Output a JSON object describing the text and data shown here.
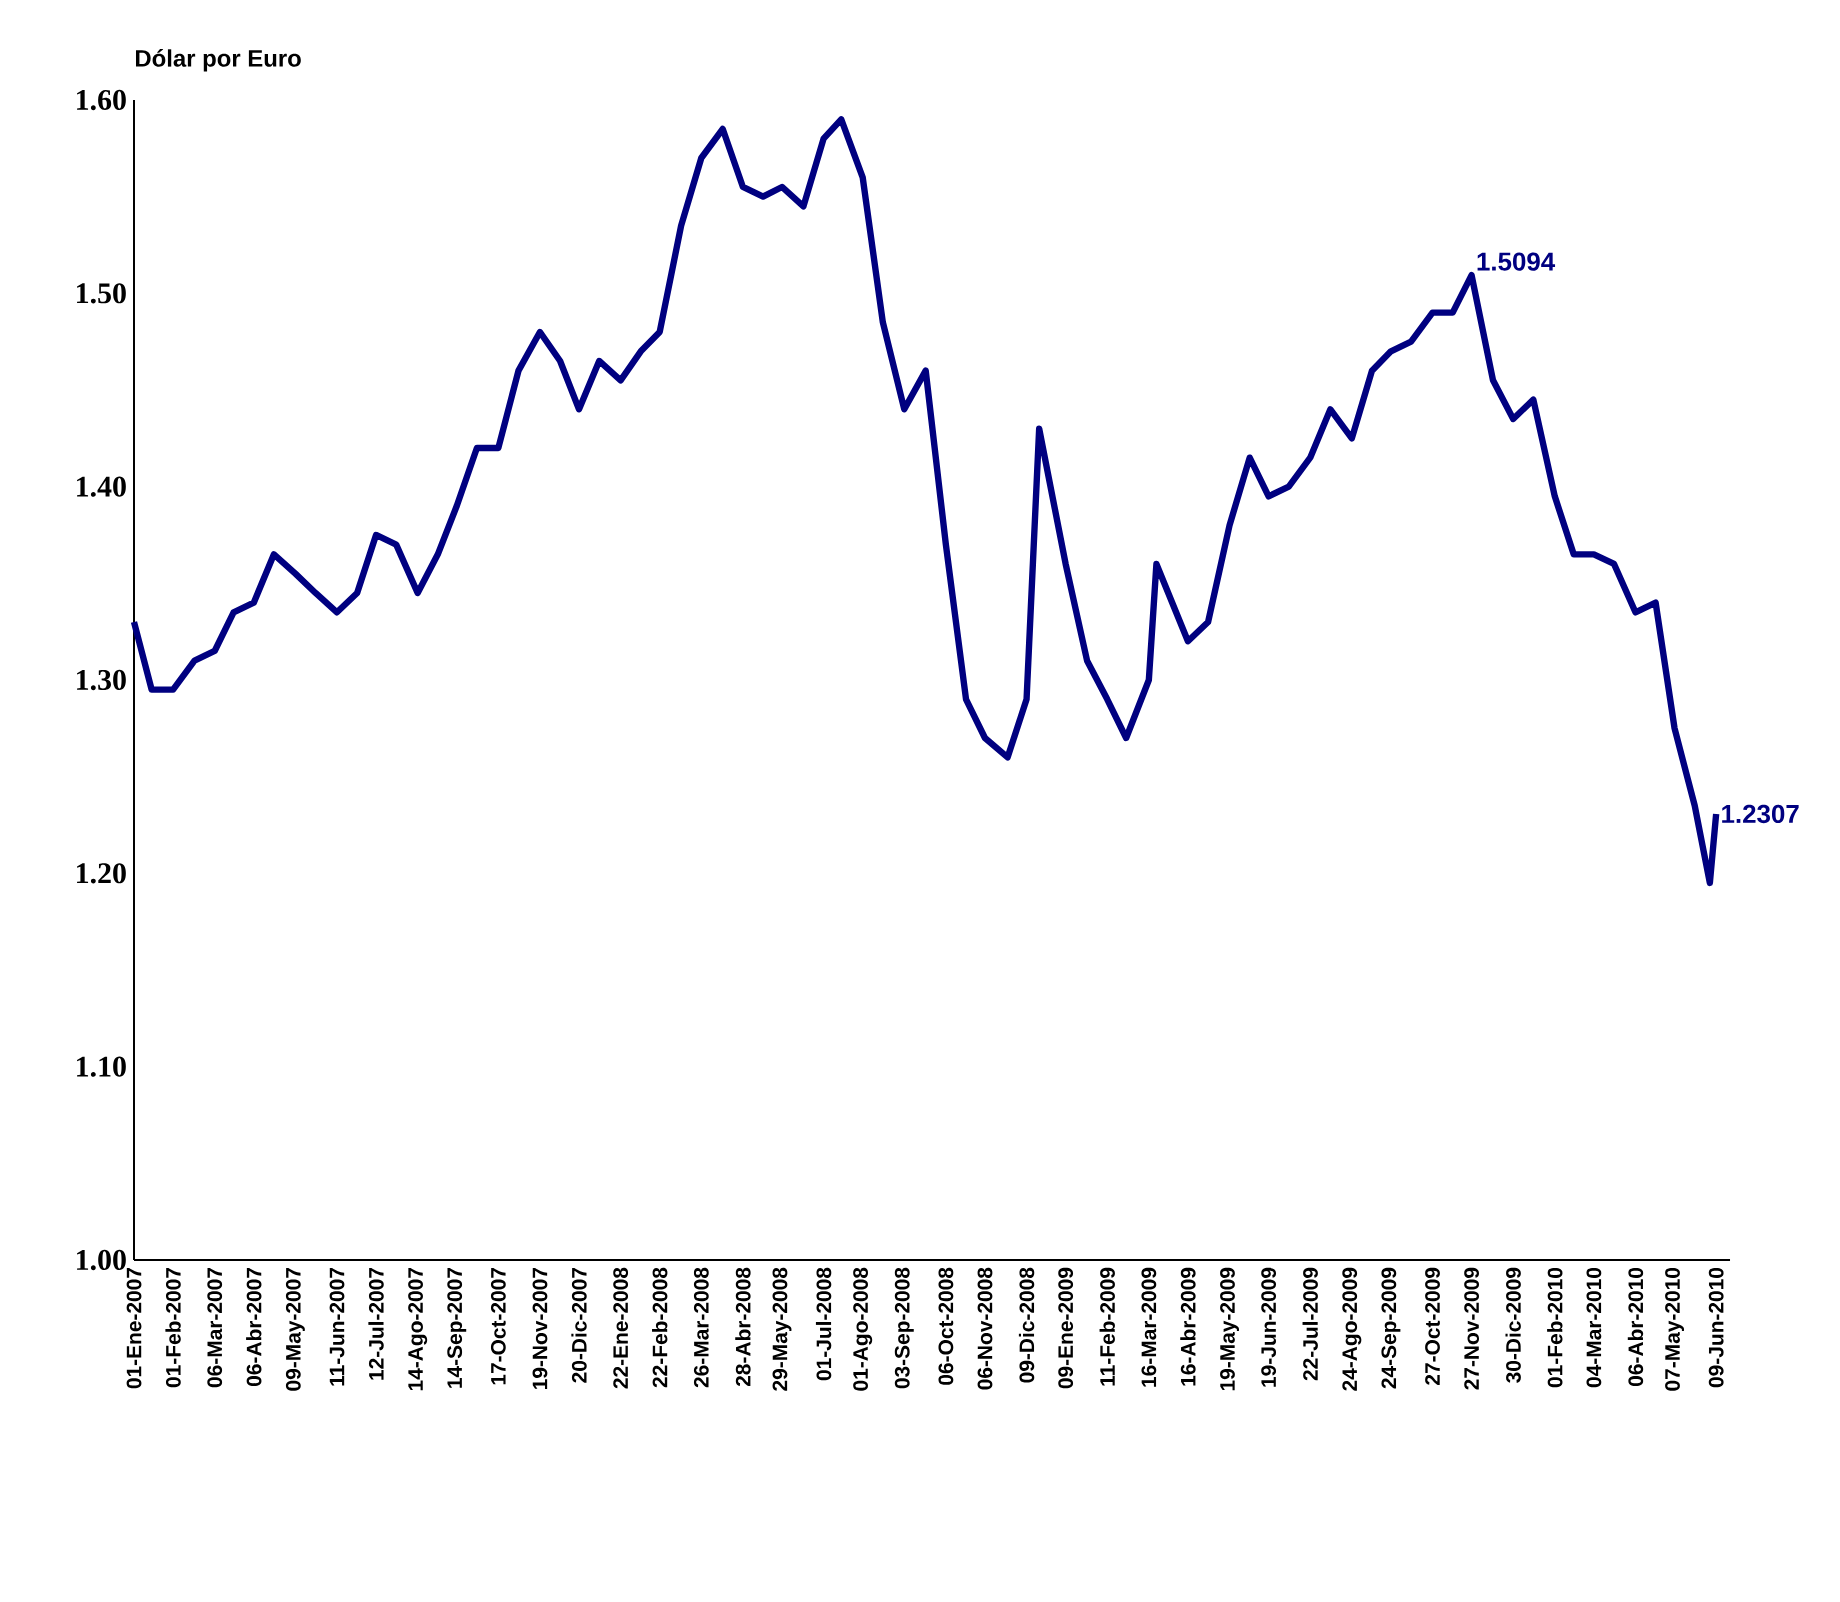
{
  "chart_data": {
    "type": "line",
    "ylabel": "Dólar por Euro",
    "xlim": [
      "2007-01-01",
      "2010-06-20"
    ],
    "ylim": [
      1.0,
      1.6
    ],
    "yticks": [
      {
        "value": 1.0,
        "label": "1.00"
      },
      {
        "value": 1.1,
        "label": "1.10"
      },
      {
        "value": 1.2,
        "label": "1.20"
      },
      {
        "value": 1.3,
        "label": "1.30"
      },
      {
        "value": 1.4,
        "label": "1.40"
      },
      {
        "value": 1.5,
        "label": "1.50"
      },
      {
        "value": 1.6,
        "label": "1.60"
      }
    ],
    "xticks": [
      {
        "value": "2007-01-01",
        "label": "01-Ene-2007"
      },
      {
        "value": "2007-02-01",
        "label": "01-Feb-2007"
      },
      {
        "value": "2007-03-06",
        "label": "06-Mar-2007"
      },
      {
        "value": "2007-04-06",
        "label": "06-Abr-2007"
      },
      {
        "value": "2007-05-09",
        "label": "09-May-2007"
      },
      {
        "value": "2007-06-11",
        "label": "11-Jun-2007"
      },
      {
        "value": "2007-07-12",
        "label": "12-Jul-2007"
      },
      {
        "value": "2007-08-14",
        "label": "14-Ago-2007"
      },
      {
        "value": "2007-09-14",
        "label": "14-Sep-2007"
      },
      {
        "value": "2007-10-17",
        "label": "17-Oct-2007"
      },
      {
        "value": "2007-11-19",
        "label": "19-Nov-2007"
      },
      {
        "value": "2007-12-20",
        "label": "20-Dic-2007"
      },
      {
        "value": "2008-01-22",
        "label": "22-Ene-2008"
      },
      {
        "value": "2008-02-22",
        "label": "22-Feb-2008"
      },
      {
        "value": "2008-03-26",
        "label": "26-Mar-2008"
      },
      {
        "value": "2008-04-28",
        "label": "28-Abr-2008"
      },
      {
        "value": "2008-05-29",
        "label": "29-May-2008"
      },
      {
        "value": "2008-07-01",
        "label": "01-Jul-2008"
      },
      {
        "value": "2008-08-01",
        "label": "01-Ago-2008"
      },
      {
        "value": "2008-09-03",
        "label": "03-Sep-2008"
      },
      {
        "value": "2008-10-06",
        "label": "06-Oct-2008"
      },
      {
        "value": "2008-11-06",
        "label": "06-Nov-2008"
      },
      {
        "value": "2008-12-09",
        "label": "09-Dic-2008"
      },
      {
        "value": "2009-01-09",
        "label": "09-Ene-2009"
      },
      {
        "value": "2009-02-11",
        "label": "11-Feb-2009"
      },
      {
        "value": "2009-03-16",
        "label": "16-Mar-2009"
      },
      {
        "value": "2009-04-16",
        "label": "16-Abr-2009"
      },
      {
        "value": "2009-05-19",
        "label": "19-May-2009"
      },
      {
        "value": "2009-06-19",
        "label": "19-Jun-2009"
      },
      {
        "value": "2009-07-22",
        "label": "22-Jul-2009"
      },
      {
        "value": "2009-08-24",
        "label": "24-Ago-2009"
      },
      {
        "value": "2009-09-24",
        "label": "24-Sep-2009"
      },
      {
        "value": "2009-10-27",
        "label": "27-Oct-2009"
      },
      {
        "value": "2009-11-27",
        "label": "27-Nov-2009"
      },
      {
        "value": "2009-12-30",
        "label": "30-Dic-2009"
      },
      {
        "value": "2010-02-01",
        "label": "01-Feb-2010"
      },
      {
        "value": "2010-03-04",
        "label": "04-Mar-2010"
      },
      {
        "value": "2010-04-06",
        "label": "06-Abr-2010"
      },
      {
        "value": "2010-05-07",
        "label": "07-May-2010"
      },
      {
        "value": "2010-06-09",
        "label": "09-Jun-2010"
      }
    ],
    "x": [
      "2007-01-01",
      "2007-01-15",
      "2007-02-01",
      "2007-02-18",
      "2007-03-06",
      "2007-03-21",
      "2007-04-06",
      "2007-04-22",
      "2007-05-09",
      "2007-05-25",
      "2007-06-11",
      "2007-06-27",
      "2007-07-12",
      "2007-07-28",
      "2007-08-14",
      "2007-08-30",
      "2007-09-14",
      "2007-09-30",
      "2007-10-17",
      "2007-11-02",
      "2007-11-19",
      "2007-12-05",
      "2007-12-20",
      "2008-01-05",
      "2008-01-22",
      "2008-02-07",
      "2008-02-22",
      "2008-03-10",
      "2008-03-26",
      "2008-04-12",
      "2008-04-28",
      "2008-05-14",
      "2008-05-29",
      "2008-06-15",
      "2008-07-01",
      "2008-07-15",
      "2008-08-01",
      "2008-08-17",
      "2008-09-03",
      "2008-09-20",
      "2008-10-06",
      "2008-10-22",
      "2008-11-06",
      "2008-11-24",
      "2008-12-09",
      "2008-12-19",
      "2009-01-09",
      "2009-01-26",
      "2009-02-11",
      "2009-02-26",
      "2009-03-16",
      "2009-03-22",
      "2009-04-16",
      "2009-05-02",
      "2009-05-19",
      "2009-06-04",
      "2009-06-19",
      "2009-07-05",
      "2009-07-22",
      "2009-08-07",
      "2009-08-24",
      "2009-09-09",
      "2009-09-24",
      "2009-10-10",
      "2009-10-27",
      "2009-11-12",
      "2009-11-27",
      "2009-12-14",
      "2009-12-30",
      "2010-01-15",
      "2010-02-01",
      "2010-02-16",
      "2010-03-04",
      "2010-03-20",
      "2010-04-06",
      "2010-04-22",
      "2010-05-07",
      "2010-05-23",
      "2010-06-04",
      "2010-06-09"
    ],
    "series": [
      {
        "color": "#000080",
        "values": [
          1.33,
          1.295,
          1.295,
          1.31,
          1.315,
          1.335,
          1.34,
          1.365,
          1.355,
          1.345,
          1.335,
          1.345,
          1.375,
          1.37,
          1.345,
          1.365,
          1.39,
          1.42,
          1.42,
          1.46,
          1.48,
          1.465,
          1.44,
          1.465,
          1.455,
          1.47,
          1.48,
          1.535,
          1.57,
          1.585,
          1.555,
          1.55,
          1.555,
          1.545,
          1.58,
          1.59,
          1.56,
          1.485,
          1.44,
          1.46,
          1.37,
          1.29,
          1.27,
          1.26,
          1.29,
          1.43,
          1.36,
          1.31,
          1.29,
          1.27,
          1.3,
          1.36,
          1.32,
          1.33,
          1.38,
          1.415,
          1.395,
          1.4,
          1.415,
          1.44,
          1.425,
          1.46,
          1.47,
          1.475,
          1.49,
          1.49,
          1.5094,
          1.455,
          1.435,
          1.445,
          1.395,
          1.365,
          1.365,
          1.36,
          1.335,
          1.34,
          1.275,
          1.235,
          1.195,
          1.2307
        ]
      }
    ],
    "annotations": [
      {
        "text": "1.5094",
        "x": "2009-11-27",
        "y": 1.5094
      },
      {
        "text": "1.2307",
        "x": "2010-06-09",
        "y": 1.2307
      }
    ]
  }
}
